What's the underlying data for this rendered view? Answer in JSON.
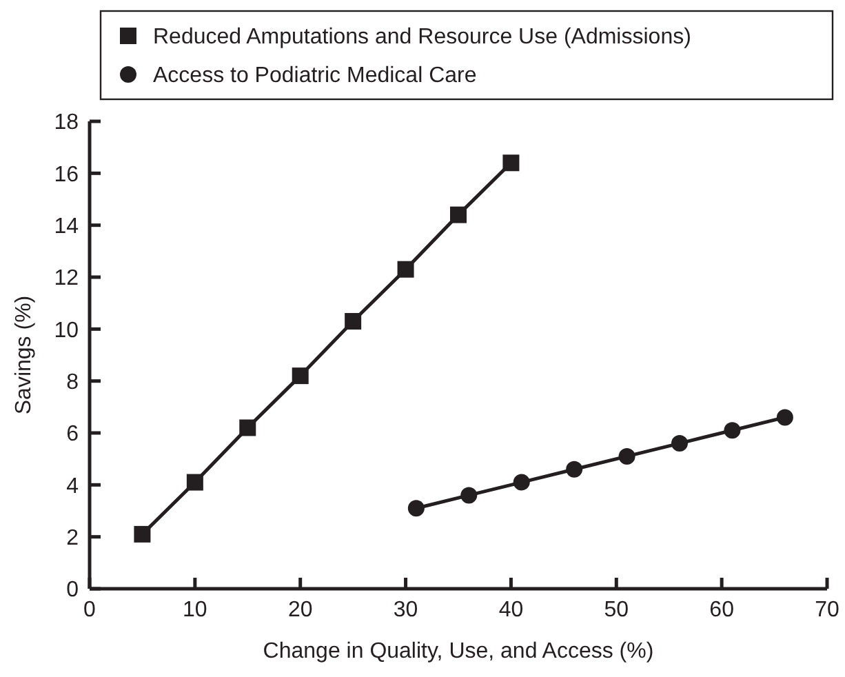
{
  "chart_data": {
    "type": "line",
    "xlabel": "Change in Quality, Use, and Access (%)",
    "ylabel": "Savings (%)",
    "xlim": [
      0,
      70
    ],
    "xticks": [
      0,
      10,
      20,
      30,
      40,
      50,
      60,
      70
    ],
    "ylim": [
      0,
      18
    ],
    "yticks": [
      0,
      2,
      4,
      6,
      8,
      10,
      12,
      14,
      16,
      18
    ],
    "grid": false,
    "legend": "top",
    "line_style": "solid",
    "series": [
      {
        "name": "Reduced Amputations and Resource Use (Admissions)",
        "color": "#231f20",
        "marker": "square",
        "x": [
          5,
          10,
          15,
          20,
          25,
          30,
          35,
          40
        ],
        "values": [
          2.1,
          4.1,
          6.2,
          8.2,
          10.3,
          12.3,
          14.4,
          16.4
        ]
      },
      {
        "name": "Access to Podiatric Medical Care",
        "color": "#231f20",
        "marker": "circle",
        "x": [
          31,
          36,
          41,
          46,
          51,
          56,
          61,
          66
        ],
        "values": [
          3.1,
          3.6,
          4.1,
          4.6,
          5.1,
          5.6,
          6.1,
          6.6
        ]
      }
    ]
  }
}
